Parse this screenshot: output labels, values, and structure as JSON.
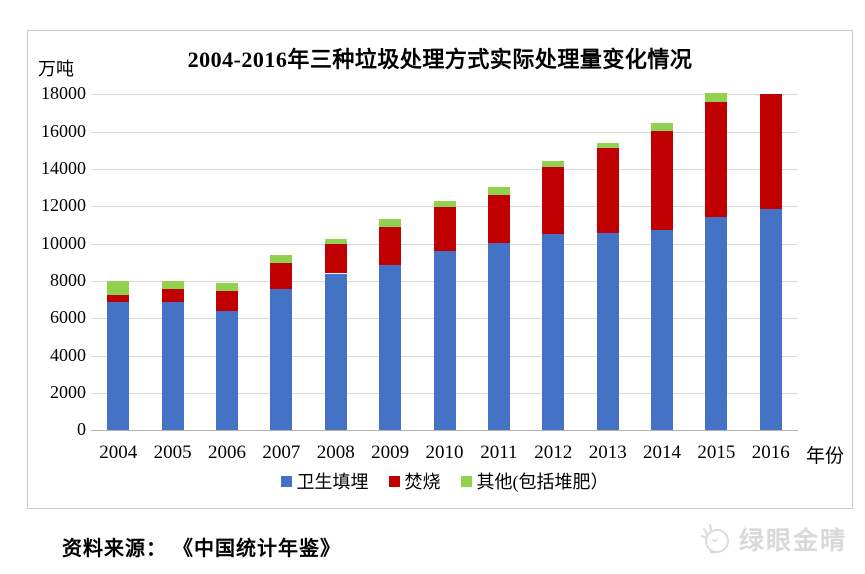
{
  "page": {
    "source_note": "资料来源： 《中国统计年鉴》",
    "watermark_text": "绿眼金晴"
  },
  "chart_data": {
    "type": "bar",
    "stacked": true,
    "title": "2004-2016年三种垃圾处理方式实际处理量变化情况",
    "unit_label": "万吨",
    "x_axis_label": "年份",
    "grid": true,
    "legend_position": "bottom",
    "categories": [
      "2004",
      "2005",
      "2006",
      "2007",
      "2008",
      "2009",
      "2010",
      "2011",
      "2012",
      "2013",
      "2014",
      "2015",
      "2016"
    ],
    "series": [
      {
        "name": "卫生填埋",
        "color": "#4472c4",
        "values": [
          6900,
          6850,
          6400,
          7550,
          8400,
          8850,
          9600,
          10050,
          10500,
          10550,
          10750,
          11450,
          11850
        ]
      },
      {
        "name": "焚烧",
        "color": "#c00000",
        "values": [
          350,
          700,
          1050,
          1400,
          1600,
          2050,
          2350,
          2550,
          3600,
          4550,
          5300,
          6150,
          6150
        ]
      },
      {
        "name": "其他(包括堆肥）",
        "color": "#92d050",
        "values": [
          750,
          450,
          450,
          450,
          250,
          400,
          350,
          450,
          350,
          300,
          400,
          450,
          0
        ]
      }
    ],
    "y_axis": {
      "min": 0,
      "max": 18000,
      "step": 2000,
      "tick_labels": [
        "0",
        "2000",
        "4000",
        "6000",
        "8000",
        "10000",
        "12000",
        "14000",
        "16000",
        "18000"
      ]
    }
  }
}
